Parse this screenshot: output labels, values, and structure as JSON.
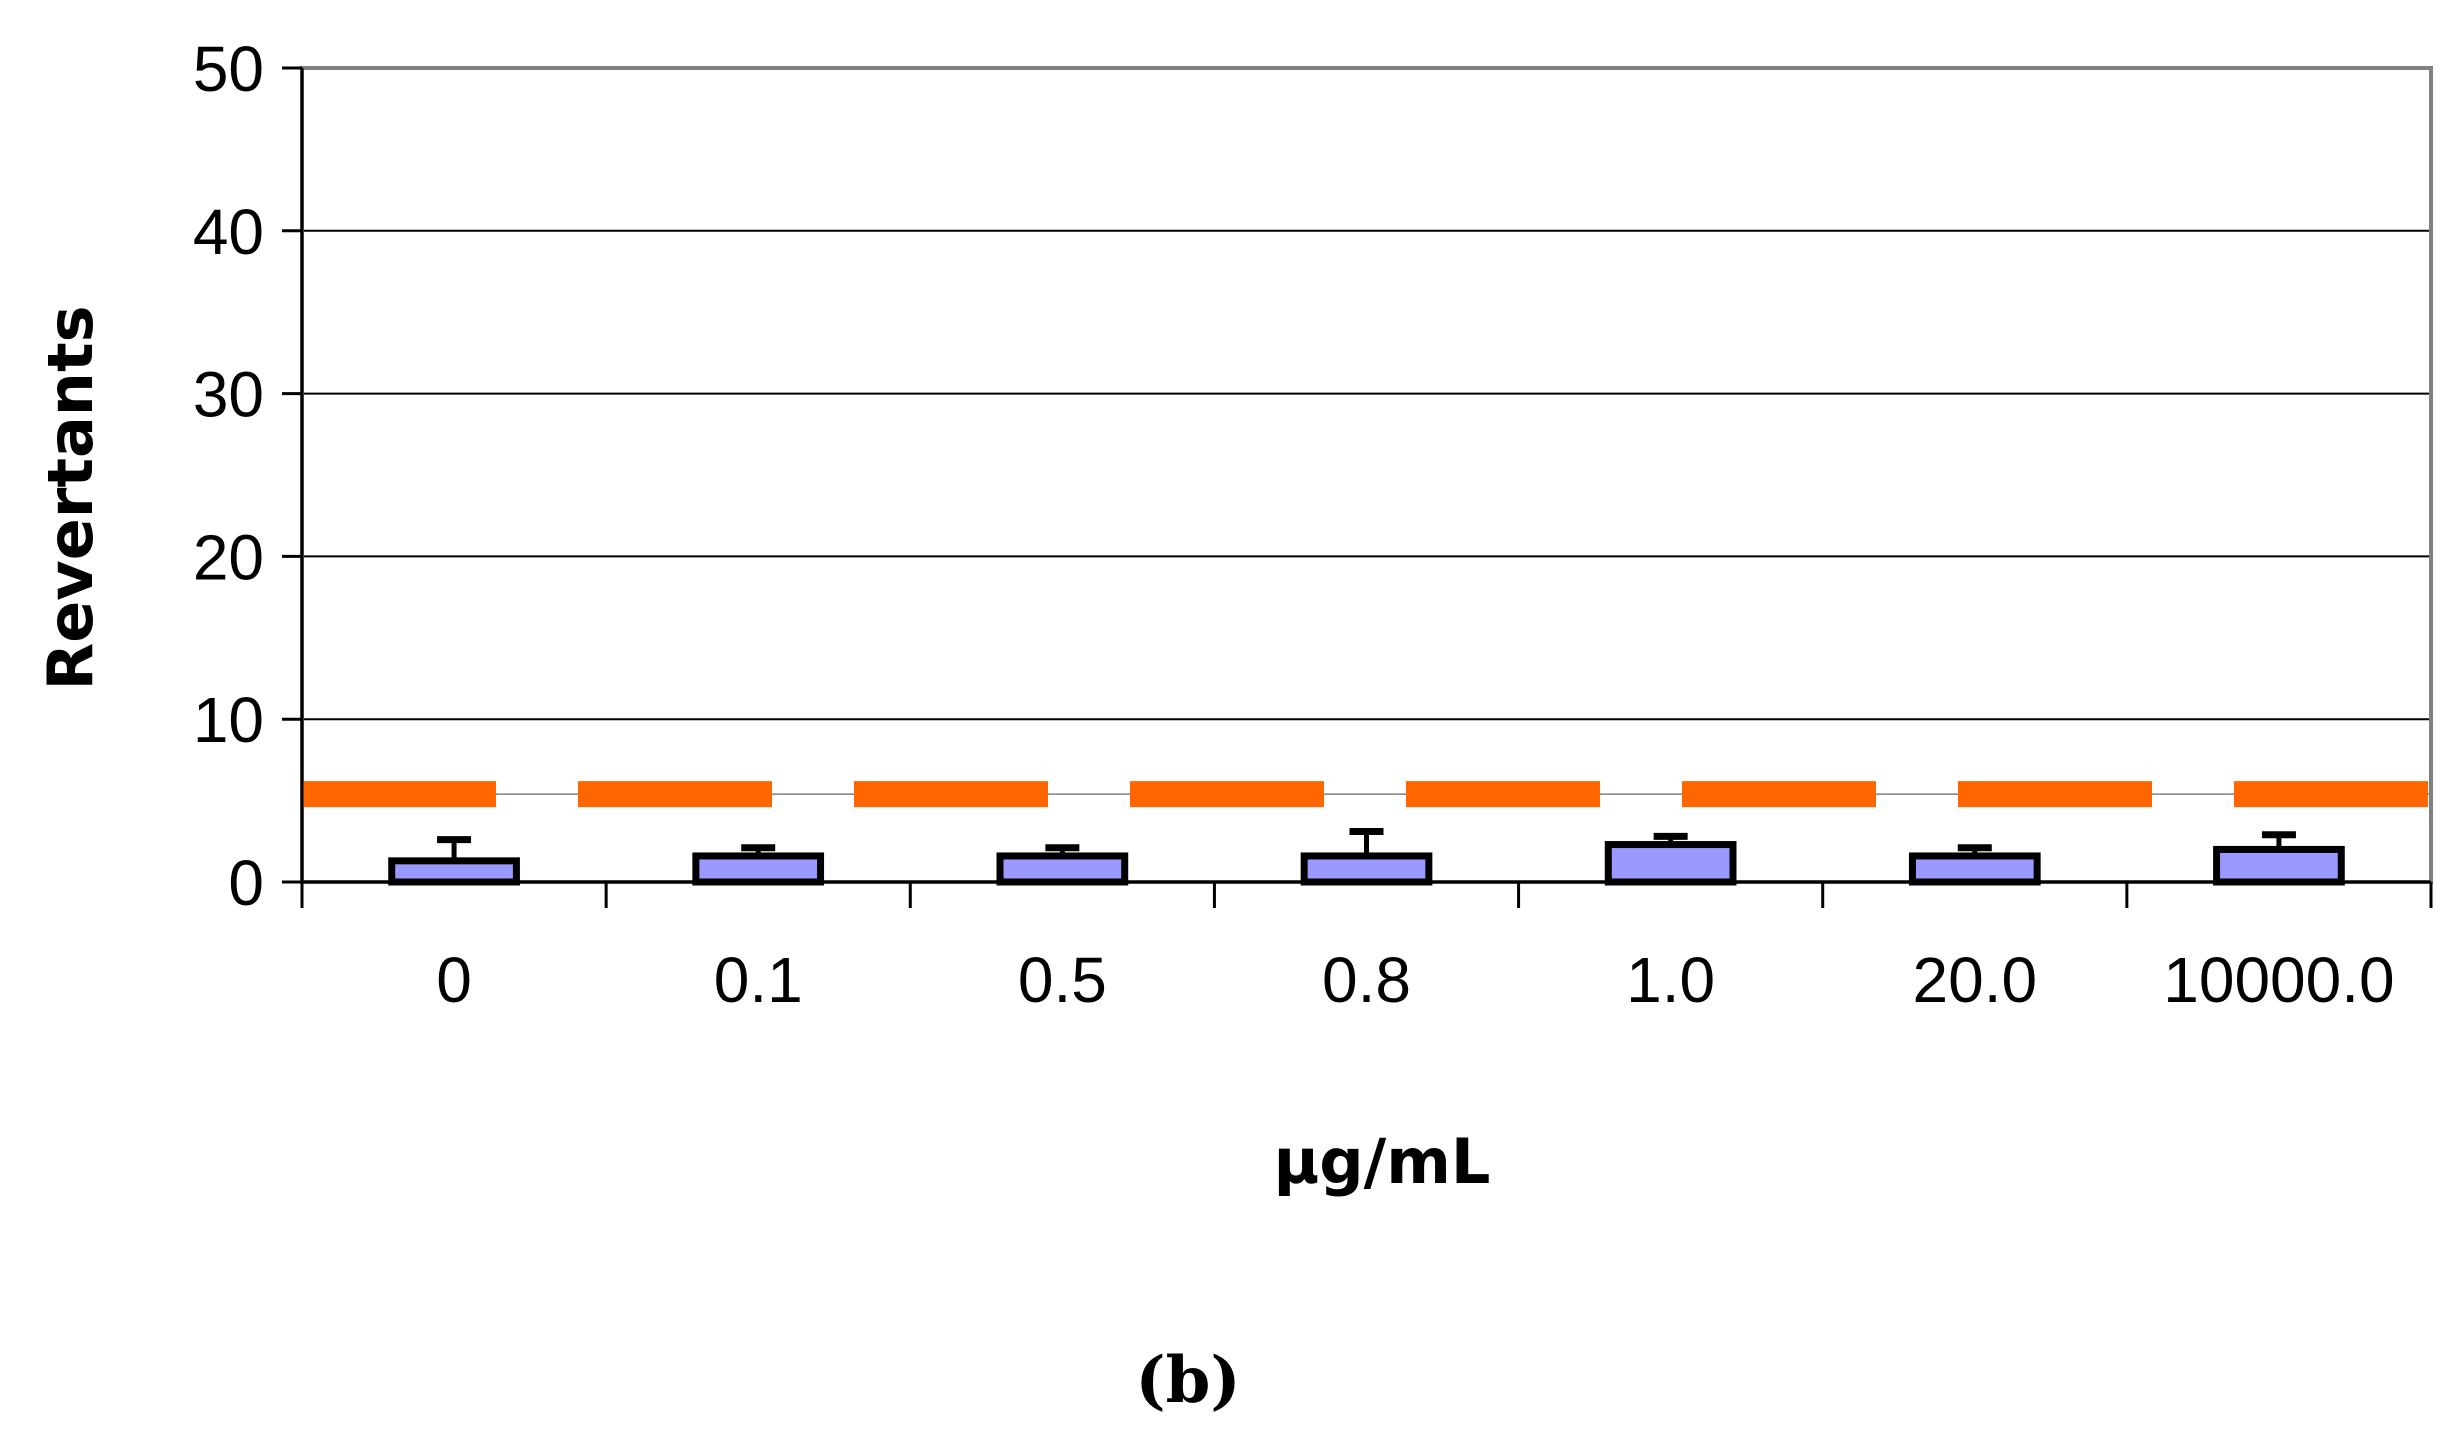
{
  "chart_data": {
    "type": "bar",
    "title": "",
    "xlabel": "µg/mL",
    "ylabel": "Revertants",
    "panel_label": "(b)",
    "categories": [
      "0",
      "0.1",
      "0.5",
      "0.8",
      "1.0",
      "20.0",
      "10000.0"
    ],
    "series": [
      {
        "values": [
          1.3,
          1.6,
          1.6,
          1.6,
          2.3,
          1.6,
          2.0
        ],
        "error": [
          1.3,
          0.5,
          0.5,
          1.5,
          0.5,
          0.5,
          0.9
        ]
      }
    ],
    "reference_line": {
      "value": 5.4,
      "style": "dashed",
      "color": "#FF6600"
    },
    "ylim": [
      0,
      50
    ],
    "yticks": [
      0,
      10,
      20,
      30,
      40,
      50
    ],
    "grid": true,
    "legend": "none",
    "colors": {
      "bar": "#9999FF",
      "bar_edge": "#000000",
      "reference": "#FF6600",
      "frame": "#808080"
    }
  }
}
